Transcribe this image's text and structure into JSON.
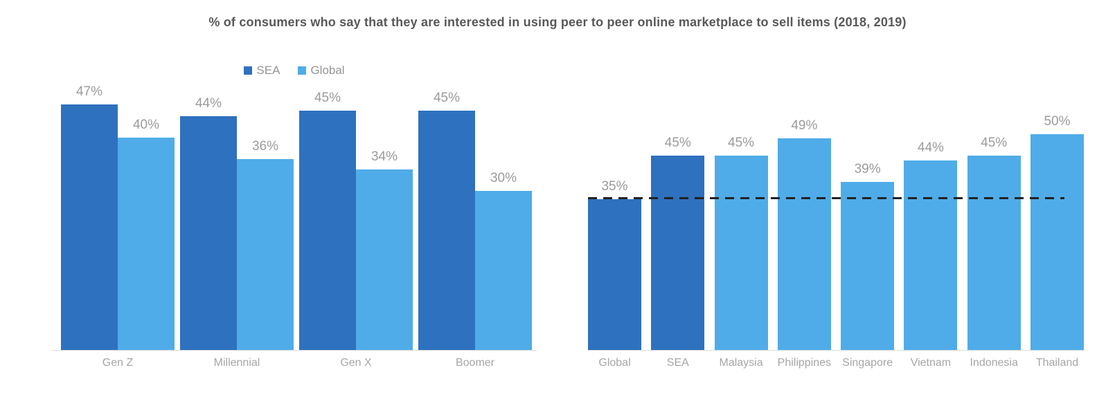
{
  "title": "% of consumers who say that they are interested in using peer to peer online marketplace to sell items (2018, 2019)",
  "colors": {
    "sea": "#2E71BE",
    "global": "#4FACE8",
    "title_text": "#595959",
    "value_label": "#9B9B9B",
    "axis_label": "#A6A6A6",
    "axis_line": "#DCDCDC",
    "legend_text": "#949494",
    "reference_line": "#222222"
  },
  "chart_data": [
    {
      "type": "bar",
      "title": "",
      "categories": [
        "Gen Z",
        "Millennial",
        "Gen X",
        "Boomer"
      ],
      "series": [
        {
          "name": "SEA",
          "color_key": "sea",
          "values": [
            47,
            44,
            45,
            45
          ]
        },
        {
          "name": "Global",
          "color_key": "global",
          "values": [
            40,
            36,
            34,
            30
          ]
        }
      ],
      "value_label_format": "{v}%",
      "legend_position": "top-center",
      "ylim": [
        0,
        50
      ],
      "grid": false,
      "y_axis_visible": false
    },
    {
      "type": "bar",
      "title": "",
      "categories": [
        "Global",
        "SEA",
        "Malaysia",
        "Philippines",
        "Singapore",
        "Vietnam",
        "Indonesia",
        "Thailand"
      ],
      "values": [
        35,
        45,
        45,
        49,
        39,
        44,
        45,
        50
      ],
      "bar_color_keys": [
        "sea",
        "sea",
        "global",
        "global",
        "global",
        "global",
        "global",
        "global"
      ],
      "value_label_format": "{v}%",
      "reference_line": {
        "value": 35,
        "style": "dashed",
        "color": "#222222"
      },
      "ylim": [
        0,
        55
      ],
      "grid": false,
      "y_axis_visible": false
    }
  ]
}
